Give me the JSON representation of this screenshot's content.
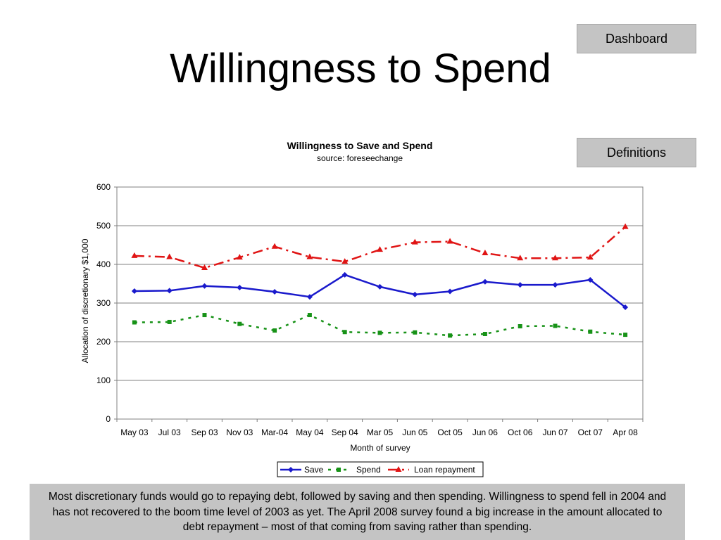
{
  "slide": {
    "title": "Willingness to Spend",
    "buttons": {
      "dashboard": "Dashboard",
      "definitions": "Definitions"
    },
    "caption": "Most discretionary funds would go to repaying debt, followed by saving and then spending.  Willingness to spend fell in 2004 and has not recovered to the boom time level of 2003 as yet.  The April 2008 survey found a big increase in the amount allocated to debt repayment – most of that coming from saving rather than spending."
  },
  "chart_data": {
    "type": "line",
    "title": "Willingness to Save and Spend",
    "subtitle": "source: foreseechange",
    "xlabel": "Month of survey",
    "ylabel": "Allocation of discretionary $1,000",
    "ylim": [
      0,
      600
    ],
    "yticks": [
      0,
      100,
      200,
      300,
      400,
      500,
      600
    ],
    "grid": true,
    "legend_position": "bottom",
    "categories": [
      "May 03",
      "Jul 03",
      "Sep 03",
      "Nov 03",
      "Mar-04",
      "May 04",
      "Sep 04",
      "Mar 05",
      "Jun 05",
      "Oct 05",
      "Jun 06",
      "Oct 06",
      "Jun 07",
      "Oct 07",
      "Apr 08"
    ],
    "series": [
      {
        "name": "Save",
        "color": "#1a1acc",
        "dash": "solid",
        "marker": "diamond",
        "values": [
          331,
          332,
          344,
          340,
          329,
          316,
          373,
          342,
          322,
          330,
          355,
          347,
          347,
          360,
          289
        ]
      },
      {
        "name": "Spend",
        "color": "#179217",
        "dash": "dotted",
        "marker": "square",
        "values": [
          250,
          251,
          269,
          246,
          229,
          269,
          225,
          223,
          224,
          216,
          220,
          240,
          241,
          226,
          218
        ]
      },
      {
        "name": "Loan repayment",
        "color": "#e01414",
        "dash": "dashdot",
        "marker": "triangle",
        "values": [
          422,
          419,
          391,
          418,
          446,
          419,
          407,
          438,
          457,
          459,
          429,
          416,
          416,
          418,
          497
        ]
      }
    ]
  }
}
